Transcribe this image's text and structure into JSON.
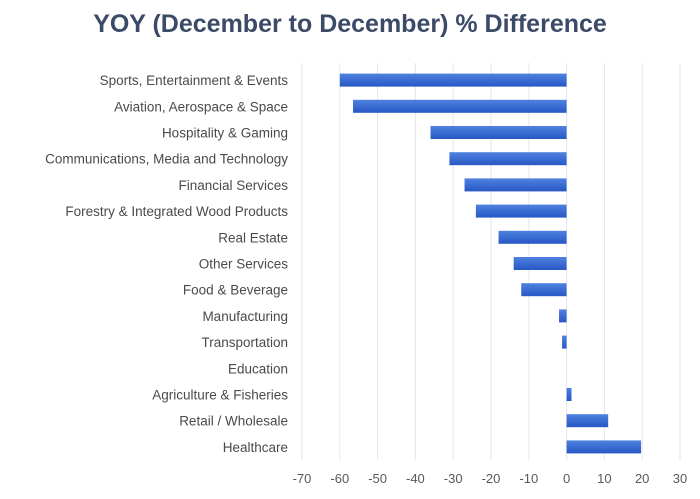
{
  "chart_data": {
    "type": "bar",
    "orientation": "horizontal",
    "title": "YOY (December to December) % Difference",
    "xlabel": "",
    "ylabel": "",
    "categories": [
      "Sports, Entertainment & Events",
      "Aviation, Aerospace & Space",
      "Hospitality & Gaming",
      "Communications, Media and Technology",
      "Financial Services",
      "Forestry & Integrated Wood Products",
      "Real Estate",
      "Other Services",
      "Food & Beverage",
      "Manufacturing",
      "Transportation",
      "Education",
      "Agriculture & Fisheries",
      "Retail / Wholesale",
      "Healthcare"
    ],
    "values": [
      -60,
      -56.5,
      -36,
      -31,
      -27,
      -24,
      -18,
      -14,
      -12,
      -2,
      -1.2,
      0,
      1.3,
      11,
      19.7
    ],
    "xlim": [
      -70,
      30
    ],
    "xticks": [
      "-70",
      "-60",
      "-50",
      "-40",
      "-30",
      "-20",
      "-10",
      "0",
      "10",
      "20",
      "30"
    ],
    "grid": true,
    "legend": "none",
    "bar_color": "#3a6fd8"
  }
}
